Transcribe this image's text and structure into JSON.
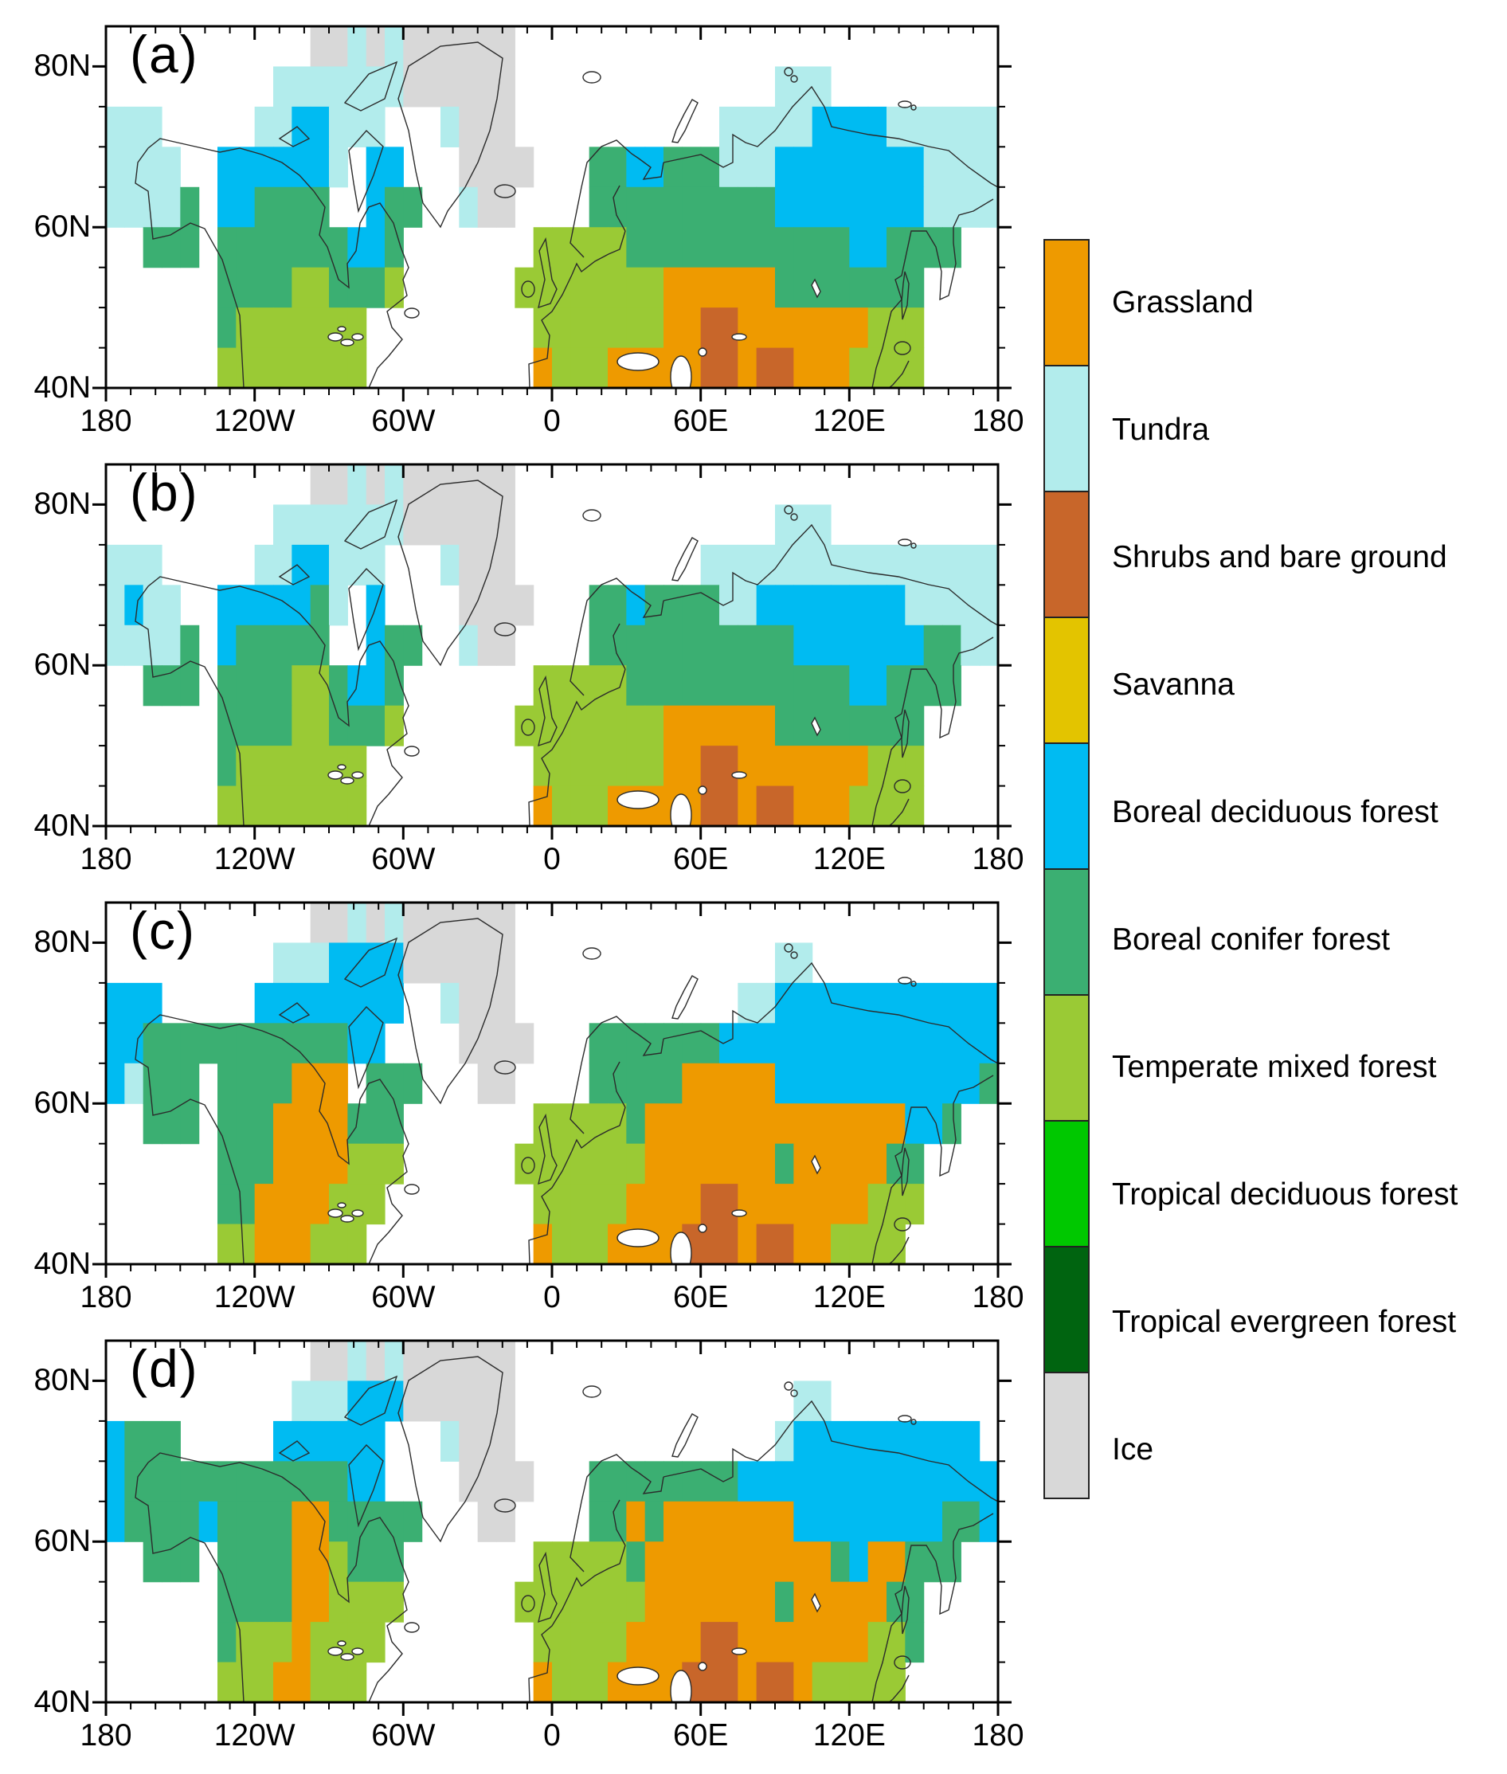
{
  "panels": [
    {
      "id": "a",
      "label": "(a)"
    },
    {
      "id": "b",
      "label": "(b)"
    },
    {
      "id": "c",
      "label": "(c)"
    },
    {
      "id": "d",
      "label": "(d)"
    }
  ],
  "axes": {
    "x_tick_labels": [
      "180",
      "120W",
      "60W",
      "0",
      "60E",
      "120E",
      "180"
    ],
    "y_tick_labels": [
      "80N",
      "60N",
      "40N"
    ],
    "x_range_deg": [
      -180,
      180
    ],
    "y_range_deg": [
      40,
      85
    ],
    "x_major_step_deg": 60,
    "x_minor_step_deg": 10,
    "y_major_step_deg": 20,
    "y_minor_step_deg": 5
  },
  "legend": {
    "items": [
      {
        "code": "G",
        "label": "Grassland",
        "color": "#EE9A00"
      },
      {
        "code": "T",
        "label": "Tundra",
        "color": "#B2ECEC"
      },
      {
        "code": "S",
        "label": "Shrubs and bare ground",
        "color": "#C8662A"
      },
      {
        "code": "V",
        "label": "Savanna",
        "color": "#E3C400"
      },
      {
        "code": "D",
        "label": "Boreal deciduous forest",
        "color": "#00BBF2"
      },
      {
        "code": "C",
        "label": "Boreal conifer forest",
        "color": "#3BAF72"
      },
      {
        "code": "M",
        "label": "Temperate mixed forest",
        "color": "#9ACA35"
      },
      {
        "code": "X",
        "label": "Tropical deciduous forest",
        "color": "#00C800"
      },
      {
        "code": "E",
        "label": "Tropical evergreen forest",
        "color": "#006410"
      },
      {
        "code": "I",
        "label": "Ice",
        "color": "#D8D8D8"
      }
    ]
  },
  "grid_meta": {
    "cols": 48,
    "rows": 9,
    "lon_min_deg": -180,
    "lon_step_deg": 7.5,
    "lat_max_deg": 85,
    "lat_step_deg": 5,
    "empty_char": "."
  },
  "grids": {
    "a": [
      "...........IITITIIIIII..........................",
      ".........TTTTTTTIIIIII..............TTT.........",
      "TTT.....TTDDTTT...TIII...........TTTTTDDDDTTTTTT",
      "TTTT..DDDDDDT.DD...IIII...CCDDCCCTTTDDDDDDDDTTTT",
      "TTTTC.DDCCCC..DCC..TII....CCCCCCCCCCDDDDDDDDTTTT",
      "..CCC.CCCCCCCDDC.......MMMMMCCCCCCCCCCCCDDCCCC..",
      "......CCCCMMCCCM......MMMMMMMMGGGGGGCCCCCCCC....",
      "......CMMMMMMM.........MMMMMMMGGSSGGGGGGGMMM....",
      "......MMMMMMMM.........GMMMGGGGGSSGSSGGGMMMM...."
    ],
    "b": [
      "...........IITITIIIIII..........................",
      ".........TTTTTTTIIIIII..............TTT.........",
      "TTT.....TTDDTTT...TIII..........TTTTTTTTTTTTTTTT",
      "TDTT..DDDDDCT.D....IIII...CCDCCCCTTDDDDDDDDTTTTT",
      "TTTTC.DCCCCC..DCC..TII....CCCCCCCCCCCDDDDDDDCCTT",
      "..CCC.CCCCMMCDDC.......MMMMMCCCCCCCCCCCCDDCCCC..",
      "......CCCCMMCCCM......MMMMMMMMGGGGGGCCCCCCCC....",
      "......CMMMMMMM.........MMMMMMMGGSSGGGGGGGMMM....",
      "......MMMMMMMM.........GMMMGGGGGSSGSSGGGMMMM...."
    ],
    "c": [
      "...........IITITIIIIII..........................",
      ".........TTTDDDDIIIIII..............TT..........",
      "DDD.....DDDDDDDD..TIII............TTDDDDDDDDDDDD",
      "DDCCCCCCCCCCCDD....IIII...CCCCCCCDDDDDDDDDDDDDDD",
      "DTCCC.CCCCGGG.CCC...II....CCCCCGGGGGDDDDDDDDDDDC",
      "..CCC.CCCGGGGCCC.......MMMMMCGGGGGGGGGGGGGGDDC..",
      "......CCCGGGGMMM......MMMMMMMGGGGGGGCGGGGGCC....",
      "......CCGGGGMMM........MMMMMGGGGSSGGGGGGGMMM....",
      "......MMGGGMMM.........GMMMGGGGSSSGSSGGMMMM....."
    ],
    "d": [
      "...........IITITIIIIII..........................",
      "..........TTTDDDIIIIII...............TT.........",
      "DCCC.....DDDDDD...TIII..............TDDDDDDDDDD.",
      "DCCCCCCCCCCCCDD....IIII...CCCCCCCCDDDDDDDDDDDDDD",
      "DCCCCDCCCCGGCCCCC...II....CCGCGGGGGGGDDDDDDDDCCD",
      "..CCC.CCCCGGMCCC.......MMMMMCGGGGGGGGGGCDGGCCC..",
      "......CCCCGGMMMM......MMMMMMMGGGGGGGCGGGGGCC....",
      "......CMMMGMMMM........MMMMMGGGGSSGGGGGGGMMC....",
      "......MMMGGMMM.........GMMMGGGGSSSGSSGMMMMM....."
    ]
  }
}
